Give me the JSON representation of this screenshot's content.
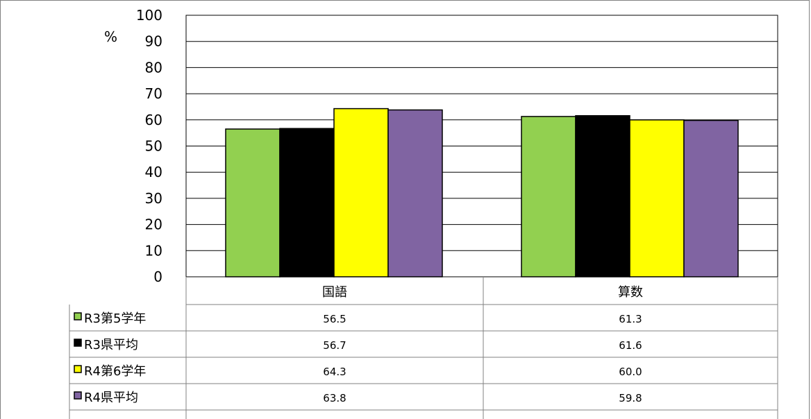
{
  "chart_data": {
    "type": "bar",
    "unit_label": "%",
    "ylim": [
      0,
      100
    ],
    "yticks": [
      0,
      10,
      20,
      30,
      40,
      50,
      60,
      70,
      80,
      90,
      100
    ],
    "grid": true,
    "categories": [
      "国語",
      "算数"
    ],
    "series": [
      {
        "name": "R3第5学年",
        "color": "#92d050",
        "values": [
          56.5,
          61.3
        ],
        "labels": [
          "56.5",
          "61.3"
        ]
      },
      {
        "name": "R3県平均",
        "color": "#000000",
        "values": [
          56.7,
          61.6
        ],
        "labels": [
          "56.7",
          "61.6"
        ]
      },
      {
        "name": "R4第6学年",
        "color": "#ffff00",
        "values": [
          64.3,
          60.0
        ],
        "labels": [
          "64.3",
          "60.0"
        ]
      },
      {
        "name": "R4県平均",
        "color": "#8064a2",
        "values": [
          63.8,
          59.8
        ],
        "labels": [
          "63.8",
          "59.8"
        ]
      }
    ],
    "legend_placement": "table-left"
  }
}
